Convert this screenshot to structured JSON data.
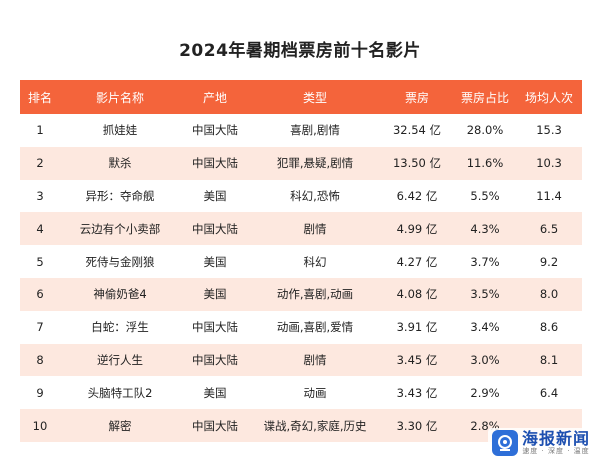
{
  "title": "2024年暑期档票房前十名影片",
  "table": {
    "headers": [
      "排名",
      "影片名称",
      "产地",
      "类型",
      "票房",
      "票房占比",
      "场均人次"
    ],
    "rows": [
      [
        "1",
        "抓娃娃",
        "中国大陆",
        "喜剧,剧情",
        "32.54 亿",
        "28.0%",
        "15.3"
      ],
      [
        "2",
        "默杀",
        "中国大陆",
        "犯罪,悬疑,剧情",
        "13.50 亿",
        "11.6%",
        "10.3"
      ],
      [
        "3",
        "异形：夺命舰",
        "美国",
        "科幻,恐怖",
        "6.42 亿",
        "5.5%",
        "11.4"
      ],
      [
        "4",
        "云边有个小卖部",
        "中国大陆",
        "剧情",
        "4.99 亿",
        "4.3%",
        "6.5"
      ],
      [
        "5",
        "死侍与金刚狼",
        "美国",
        "科幻",
        "4.27 亿",
        "3.7%",
        "9.2"
      ],
      [
        "6",
        "神偷奶爸4",
        "美国",
        "动作,喜剧,动画",
        "4.08 亿",
        "3.5%",
        "8.0"
      ],
      [
        "7",
        "白蛇：浮生",
        "中国大陆",
        "动画,喜剧,爱情",
        "3.91 亿",
        "3.4%",
        "8.6"
      ],
      [
        "8",
        "逆行人生",
        "中国大陆",
        "剧情",
        "3.45 亿",
        "3.0%",
        "8.1"
      ],
      [
        "9",
        "头脑特工队2",
        "美国",
        "动画",
        "3.43 亿",
        "2.9%",
        "6.4"
      ],
      [
        "10",
        "解密",
        "中国大陆",
        "谍战,奇幻,家庭,历史",
        "3.30 亿",
        "2.8%",
        ""
      ]
    ]
  },
  "colors": {
    "header_bg": "#f4643b",
    "stripe_bg": "#fde8df",
    "brand_blue": "#2e6fd8"
  },
  "watermark": {
    "name": "海报新闻",
    "slogan": "速度 · 深度 · 温度",
    "icon": "news-logo-icon"
  }
}
